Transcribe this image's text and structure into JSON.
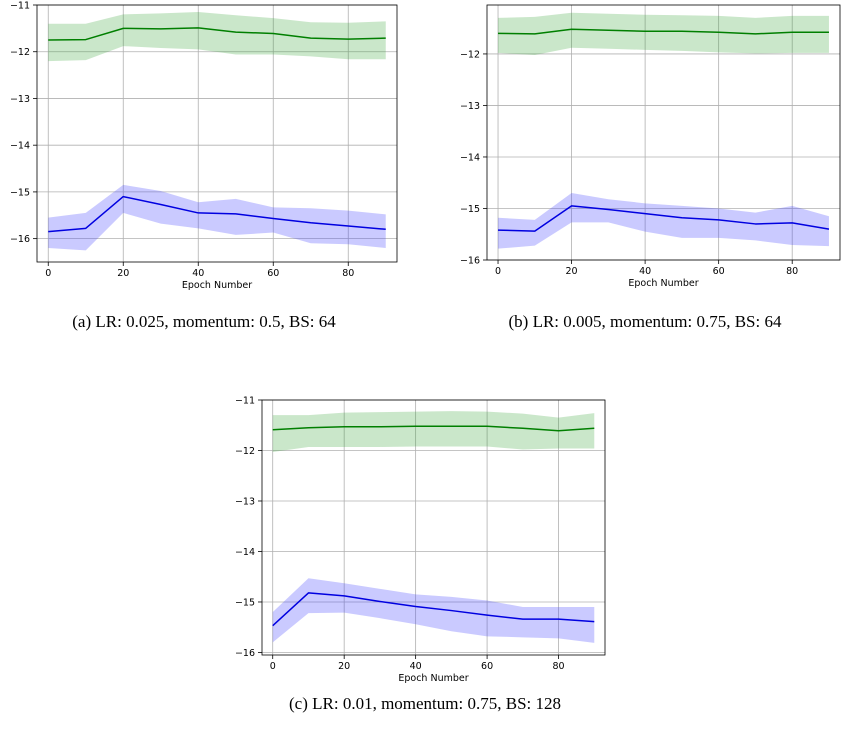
{
  "chart_data": [
    {
      "type": "line",
      "caption": "(a) LR: 0.025, momentum: 0.5, BS: 64",
      "xlabel": "Epoch Number",
      "ylabel": "",
      "xlim": [
        -3,
        93
      ],
      "ylim": [
        -16.5,
        -11
      ],
      "xticks": [
        0,
        20,
        40,
        60,
        80
      ],
      "yticks": [
        -11,
        -12,
        -13,
        -14,
        -15,
        -16
      ],
      "xtick_labels": [
        "0",
        "20",
        "40",
        "60",
        "80"
      ],
      "ytick_labels": [
        "−11",
        "−12",
        "−13",
        "−14",
        "−15",
        "−16"
      ],
      "grid": true,
      "x": [
        0,
        10,
        20,
        30,
        40,
        50,
        60,
        70,
        80,
        90
      ],
      "series": [
        {
          "color": "#007f00",
          "fill_color": "#2ca02c",
          "values": [
            -11.75,
            -11.74,
            -11.5,
            -11.51,
            -11.49,
            -11.58,
            -11.61,
            -11.71,
            -11.73,
            -11.71
          ],
          "upper": [
            -11.4,
            -11.4,
            -11.2,
            -11.18,
            -11.15,
            -11.22,
            -11.28,
            -11.37,
            -11.38,
            -11.35
          ],
          "lower": [
            -12.2,
            -12.18,
            -11.88,
            -11.92,
            -11.95,
            -12.06,
            -12.06,
            -12.1,
            -12.16,
            -12.16
          ]
        },
        {
          "color": "#0000e0",
          "fill_color": "#4040ff",
          "values": [
            -15.85,
            -15.78,
            -15.1,
            -15.27,
            -15.45,
            -15.47,
            -15.57,
            -15.66,
            -15.73,
            -15.8
          ],
          "upper": [
            -15.55,
            -15.45,
            -14.85,
            -14.98,
            -15.22,
            -15.15,
            -15.33,
            -15.35,
            -15.4,
            -15.48
          ],
          "lower": [
            -16.2,
            -16.25,
            -15.45,
            -15.68,
            -15.78,
            -15.92,
            -15.87,
            -16.1,
            -16.12,
            -16.2
          ]
        }
      ]
    },
    {
      "type": "line",
      "caption": "(b) LR: 0.005, momentum: 0.75, BS: 64",
      "xlabel": "Epoch Number",
      "ylabel": "",
      "xlim": [
        -3,
        93
      ],
      "ylim": [
        -16,
        -11.05
      ],
      "xticks": [
        0,
        20,
        40,
        60,
        80
      ],
      "yticks": [
        -12,
        -13,
        -14,
        -15,
        -16
      ],
      "xtick_labels": [
        "0",
        "20",
        "40",
        "60",
        "80"
      ],
      "ytick_labels": [
        "−12",
        "−13",
        "−14",
        "−15",
        "−16"
      ],
      "grid": true,
      "x": [
        0,
        10,
        20,
        30,
        40,
        50,
        60,
        70,
        80,
        90
      ],
      "series": [
        {
          "color": "#007f00",
          "fill_color": "#2ca02c",
          "values": [
            -11.6,
            -11.61,
            -11.52,
            -11.54,
            -11.56,
            -11.56,
            -11.58,
            -11.61,
            -11.58,
            -11.58
          ],
          "upper": [
            -11.3,
            -11.28,
            -11.2,
            -11.22,
            -11.24,
            -11.25,
            -11.26,
            -11.3,
            -11.26,
            -11.26
          ],
          "lower": [
            -11.98,
            -12.02,
            -11.88,
            -11.9,
            -11.92,
            -11.94,
            -11.97,
            -11.99,
            -11.98,
            -11.98
          ]
        },
        {
          "color": "#0000e0",
          "fill_color": "#4040ff",
          "values": [
            -15.42,
            -15.44,
            -14.95,
            -15.02,
            -15.1,
            -15.18,
            -15.22,
            -15.3,
            -15.28,
            -15.4
          ],
          "upper": [
            -15.18,
            -15.22,
            -14.7,
            -14.82,
            -14.9,
            -14.95,
            -15.0,
            -15.08,
            -14.95,
            -15.15
          ],
          "lower": [
            -15.78,
            -15.72,
            -15.27,
            -15.27,
            -15.45,
            -15.57,
            -15.57,
            -15.62,
            -15.71,
            -15.73
          ]
        }
      ]
    },
    {
      "type": "line",
      "caption": "(c) LR: 0.01, momentum: 0.75, BS: 128",
      "xlabel": "Epoch Number",
      "ylabel": "",
      "xlim": [
        -3,
        93
      ],
      "ylim": [
        -16.05,
        -11
      ],
      "xticks": [
        0,
        20,
        40,
        60,
        80
      ],
      "yticks": [
        -11,
        -12,
        -13,
        -14,
        -15,
        -16
      ],
      "xtick_labels": [
        "0",
        "20",
        "40",
        "60",
        "80"
      ],
      "ytick_labels": [
        "−11",
        "−12",
        "−13",
        "−14",
        "−15",
        "−16"
      ],
      "grid": true,
      "x": [
        0,
        10,
        20,
        30,
        40,
        50,
        60,
        70,
        80,
        90
      ],
      "series": [
        {
          "color": "#007f00",
          "fill_color": "#2ca02c",
          "values": [
            -11.59,
            -11.55,
            -11.53,
            -11.53,
            -11.52,
            -11.52,
            -11.52,
            -11.56,
            -11.61,
            -11.56
          ],
          "upper": [
            -11.3,
            -11.3,
            -11.25,
            -11.24,
            -11.23,
            -11.22,
            -11.23,
            -11.27,
            -11.35,
            -11.26
          ],
          "lower": [
            -12.03,
            -11.93,
            -11.93,
            -11.93,
            -11.92,
            -11.92,
            -11.92,
            -11.98,
            -11.96,
            -11.96
          ]
        },
        {
          "color": "#0000e0",
          "fill_color": "#4040ff",
          "values": [
            -15.47,
            -14.82,
            -14.88,
            -14.99,
            -15.09,
            -15.17,
            -15.26,
            -15.34,
            -15.34,
            -15.39
          ],
          "upper": [
            -15.2,
            -14.53,
            -14.63,
            -14.74,
            -14.85,
            -14.9,
            -14.97,
            -15.1,
            -15.1,
            -15.1
          ],
          "lower": [
            -15.8,
            -15.22,
            -15.21,
            -15.32,
            -15.44,
            -15.58,
            -15.68,
            -15.7,
            -15.72,
            -15.81
          ]
        }
      ]
    }
  ]
}
